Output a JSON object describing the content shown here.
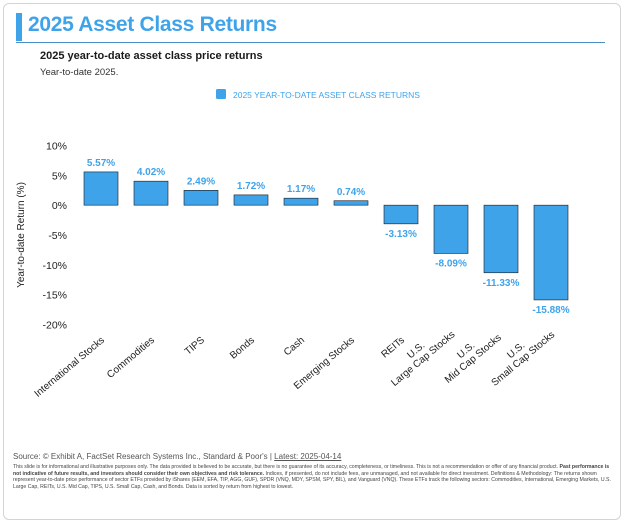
{
  "header": {
    "title": "2025 Asset Class Returns",
    "subtitle": "2025 year-to-date asset class price returns",
    "note": "Year-to-date 2025."
  },
  "chart_data": {
    "type": "bar",
    "title": "",
    "legend": "2025 YEAR-TO-DATE ASSET CLASS RETURNS",
    "legend_position": "top-center",
    "xlabel": "",
    "ylabel": "Year-to-date Return (%)",
    "ylim": [
      -20,
      10
    ],
    "yticks": [
      10,
      5,
      0,
      -5,
      -10,
      -15,
      -20
    ],
    "ytick_labels": [
      "10%",
      "5%",
      "0%",
      "-5%",
      "-10%",
      "-15%",
      "-20%"
    ],
    "grid": false,
    "bar_color": "#3fa3ea",
    "label_color": "#3fa3ea",
    "categories": [
      "International Stocks",
      "Commodities",
      "TIPS",
      "Bonds",
      "Cash",
      "Emerging Stocks",
      "REITs",
      "U.S.\nLarge Cap Stocks",
      "U.S.\nMid Cap Stocks",
      "U.S.\nSmall Cap Stocks"
    ],
    "values": [
      5.57,
      4.02,
      2.49,
      1.72,
      1.17,
      0.74,
      -3.13,
      -8.09,
      -11.33,
      -15.88
    ],
    "value_labels": [
      "5.57%",
      "4.02%",
      "2.49%",
      "1.72%",
      "1.17%",
      "0.74%",
      "-3.13%",
      "-8.09%",
      "-11.33%",
      "-15.88%"
    ]
  },
  "footer": {
    "source_prefix": "Source: © Exhibit A, FactSet Research Systems Inc., Standard & Poor's | ",
    "latest_link": "Latest: 2025-04-14",
    "disclaimer_1": "This slide is for informational and illustrative purposes only. The data provided is believed to be accurate, but there is no guarantee of its accuracy, completeness, or timeliness. This is not a recommendation or offer of any financial product. ",
    "disclaimer_bold": "Past performance is not indicative of future results, and investors should consider their own objectives and risk tolerance.",
    "disclaimer_2": " Indices, if presented, do not include fees, are unmanaged, and not available for direct investment. Definitions & Methodology: The returns shown represent year-to-date price performance of sector ETFs provided by iShares (EEM, EFA, TIP, AGG, GUF), SPDR (VNQ, MDY, SPSM, SPY, BIL), and Vanguard (VNQ). These ETFs track the following sectors: Commodities, International, Emerging Markets, U.S. Large Cap, REITs, U.S. Mid Cap, TIPS, U.S. Small Cap, Cash, and Bonds. Data is sorted by return from highest to lowest."
  }
}
